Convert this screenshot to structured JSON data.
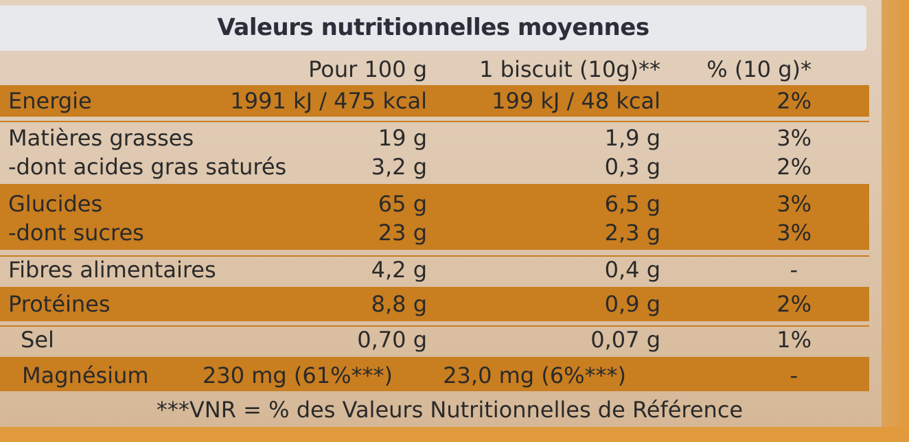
{
  "title": "Valeurs nutritionnelles moyennes",
  "headers": {
    "per100": "Pour 100 g",
    "perBiscuit": "1 biscuit (10g)**",
    "percent": "% (10 g)*"
  },
  "rows": [
    {
      "name": "Energie",
      "per100": "1991 kJ / 475 kcal",
      "perBiscuit": "199 kJ / 48 kcal",
      "percent": "2%"
    },
    {
      "name": "Matières grasses",
      "per100": "19 g",
      "perBiscuit": "1,9 g",
      "percent": "3%"
    },
    {
      "name": "-dont acides gras saturés",
      "per100": "3,2 g",
      "perBiscuit": "0,3 g",
      "percent": "2%"
    },
    {
      "name": "Glucides",
      "per100": "65 g",
      "perBiscuit": "6,5 g",
      "percent": "3%"
    },
    {
      "name": "-dont sucres",
      "per100": "23 g",
      "perBiscuit": "2,3 g",
      "percent": "3%"
    },
    {
      "name": "Fibres alimentaires",
      "per100": "4,2 g",
      "perBiscuit": "0,4 g",
      "percent": "-"
    },
    {
      "name": "Protéines",
      "per100": "8,8 g",
      "perBiscuit": "0,9 g",
      "percent": "2%"
    },
    {
      "name": "Sel",
      "per100": "0,70 g",
      "perBiscuit": "0,07 g",
      "percent": "1%"
    },
    {
      "name": "Magnésium",
      "per100": "230 mg (61%***)",
      "perBiscuit": "23,0 mg (6%***)",
      "percent": "-"
    }
  ],
  "footer": "***VNR = % des Valeurs Nutritionnelles de Référence",
  "colors": {
    "band": "#c97e20",
    "titleBar": "#e8e9ec",
    "card": "#ddc6ab"
  }
}
